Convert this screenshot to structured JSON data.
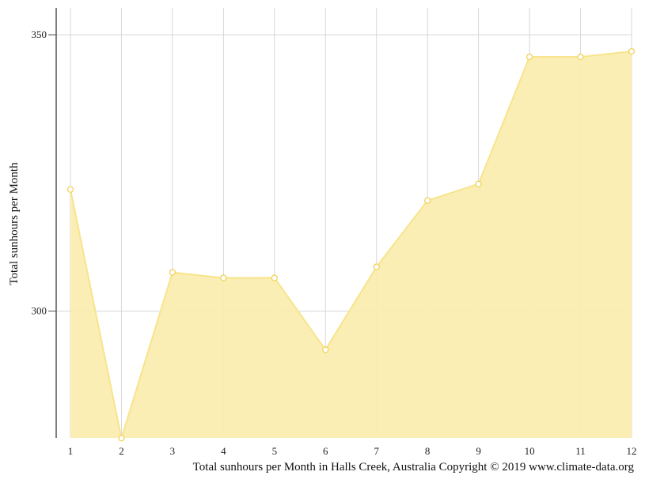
{
  "chart_data": {
    "type": "area",
    "x": [
      1,
      2,
      3,
      4,
      5,
      6,
      7,
      8,
      9,
      10,
      11,
      12
    ],
    "values": [
      322,
      277,
      307,
      306,
      306,
      293,
      308,
      320,
      323,
      346,
      346,
      347
    ],
    "ylabel": "Total sunhours per Month",
    "xlabel": "",
    "y_ticks": [
      300,
      350
    ],
    "ylim": [
      277,
      355
    ],
    "grid": true,
    "colors": {
      "fill": "#faedb0",
      "line": "#f8e48c",
      "marker_fill": "#ffffff",
      "marker_stroke": "#f2d25a",
      "grid": "#d8d8d8",
      "axis": "#555555"
    }
  },
  "caption": "Total sunhours per Month in Halls Creek, Australia Copyright © 2019 www.climate-data.org"
}
